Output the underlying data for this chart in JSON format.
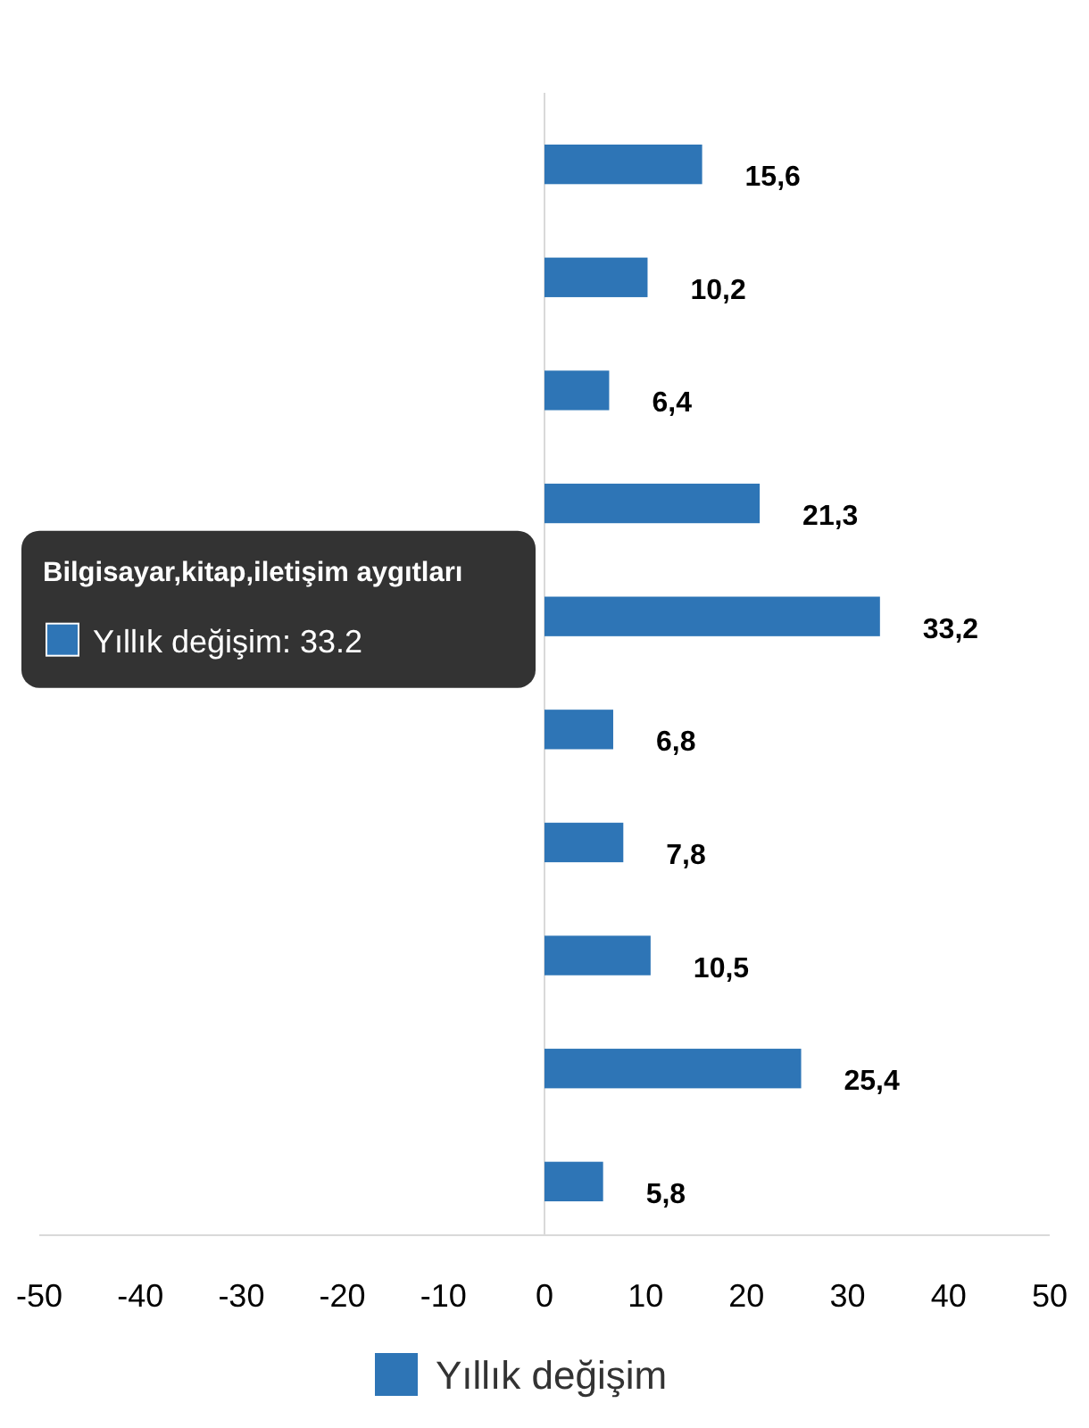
{
  "chart_data": {
    "type": "bar",
    "orientation": "horizontal",
    "categories": [
      null,
      null,
      null,
      null,
      null,
      null,
      null,
      null,
      null,
      null
    ],
    "series": [
      {
        "name": "Yıllık değişim",
        "color": "#2e75b6",
        "values": [
          15.6,
          10.2,
          6.4,
          21.3,
          33.2,
          6.8,
          7.8,
          10.5,
          25.4,
          5.8
        ],
        "value_labels": [
          "15,6",
          "10,2",
          "6,4",
          "21,3",
          "33,2",
          "6,8",
          "7,8",
          "10,5",
          "25,4",
          "5,8"
        ]
      }
    ],
    "xlim": [
      -50,
      50
    ],
    "xticks": [
      -50,
      -40,
      -30,
      -20,
      -10,
      0,
      10,
      20,
      30,
      40,
      50
    ],
    "legend": "bottom",
    "annotations": [
      "Bilgisayar,kitap,iletişim aygıtları",
      "Yıllık değişim: 33.2"
    ]
  }
}
